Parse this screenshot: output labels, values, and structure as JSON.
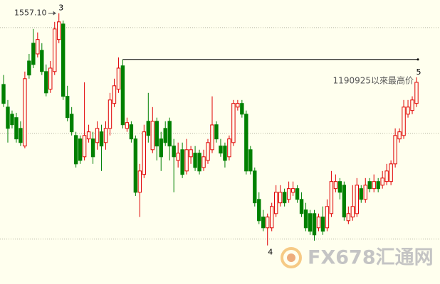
{
  "chart_data": {
    "type": "candlestick",
    "ylim": [
      1416,
      1564
    ],
    "grid_lines": [
      1549.6,
      1494.5,
      1439.4
    ],
    "up_color": "#e00000",
    "down_color": "#008000",
    "high_label": "1557.10",
    "wave_labels": [
      {
        "text": "3",
        "index": 13
      },
      {
        "text": "4",
        "index": 62
      },
      {
        "text": "5",
        "index": 97
      }
    ],
    "annotation": "1190925以來最高价",
    "reference_line_index": 28,
    "watermark": "FX678汇通网",
    "ohlc": [
      [
        1520.0,
        1524.9,
        1508.2,
        1510.1
      ],
      [
        1508.2,
        1511.9,
        1489.7,
        1497.1
      ],
      [
        1504.5,
        1506.4,
        1497.1,
        1499.0
      ],
      [
        1502.7,
        1505.2,
        1489.7,
        1491.6
      ],
      [
        1497.1,
        1500.8,
        1487.9,
        1489.7
      ],
      [
        1487.9,
        1526.7,
        1486.7,
        1523.0
      ],
      [
        1532.2,
        1535.9,
        1523.0,
        1524.9
      ],
      [
        1541.5,
        1548.9,
        1528.5,
        1530.4
      ],
      [
        1535.9,
        1547.1,
        1534.1,
        1543.4
      ],
      [
        1537.8,
        1541.5,
        1524.9,
        1526.7
      ],
      [
        1526.7,
        1530.4,
        1513.8,
        1515.6
      ],
      [
        1517.5,
        1532.2,
        1515.6,
        1528.5
      ],
      [
        1526.7,
        1552.6,
        1524.9,
        1548.9
      ],
      [
        1543.4,
        1557.1,
        1541.5,
        1552.6
      ],
      [
        1551.5,
        1553.3,
        1511.9,
        1513.8
      ],
      [
        1513.8,
        1519.3,
        1500.8,
        1502.7
      ],
      [
        1504.5,
        1508.2,
        1493.4,
        1495.3
      ],
      [
        1493.4,
        1495.3,
        1476.7,
        1478.6
      ],
      [
        1491.6,
        1493.4,
        1478.6,
        1480.4
      ],
      [
        1482.3,
        1521.1,
        1480.4,
        1493.4
      ],
      [
        1491.6,
        1499.0,
        1489.7,
        1495.3
      ],
      [
        1491.6,
        1495.3,
        1478.6,
        1482.3
      ],
      [
        1489.7,
        1500.8,
        1486.0,
        1497.1
      ],
      [
        1495.3,
        1499.0,
        1474.9,
        1487.9
      ],
      [
        1489.7,
        1500.8,
        1486.0,
        1497.1
      ],
      [
        1497.1,
        1515.6,
        1493.4,
        1511.9
      ],
      [
        1510.1,
        1523.0,
        1508.2,
        1519.3
      ],
      [
        1517.5,
        1534.1,
        1515.6,
        1528.5
      ],
      [
        1529.7,
        1533.0,
        1497.1,
        1499.0
      ],
      [
        1497.1,
        1502.7,
        1495.3,
        1500.1
      ],
      [
        1499.0,
        1500.8,
        1489.7,
        1491.6
      ],
      [
        1491.6,
        1493.4,
        1461.9,
        1463.8
      ],
      [
        1463.8,
        1478.6,
        1450.9,
        1474.9
      ],
      [
        1473.1,
        1499.0,
        1471.2,
        1495.3
      ],
      [
        1500.8,
        1515.6,
        1489.7,
        1493.4
      ],
      [
        1486.0,
        1508.2,
        1484.2,
        1500.8
      ],
      [
        1500.8,
        1502.7,
        1480.4,
        1487.9
      ],
      [
        1491.6,
        1495.3,
        1474.9,
        1482.3
      ],
      [
        1497.1,
        1500.8,
        1487.9,
        1489.7
      ],
      [
        1500.8,
        1502.7,
        1480.4,
        1487.9
      ],
      [
        1487.9,
        1491.6,
        1463.8,
        1482.3
      ],
      [
        1480.4,
        1489.7,
        1476.7,
        1484.2
      ],
      [
        1486.0,
        1489.7,
        1471.2,
        1473.1
      ],
      [
        1474.9,
        1491.6,
        1473.1,
        1486.0
      ],
      [
        1482.3,
        1487.9,
        1478.6,
        1486.0
      ],
      [
        1484.2,
        1487.9,
        1474.9,
        1476.7
      ],
      [
        1484.2,
        1486.0,
        1473.1,
        1474.9
      ],
      [
        1476.7,
        1486.0,
        1474.9,
        1482.3
      ],
      [
        1480.4,
        1491.6,
        1478.6,
        1489.7
      ],
      [
        1486.0,
        1513.8,
        1484.2,
        1498.9
      ],
      [
        1499.0,
        1500.8,
        1489.7,
        1491.6
      ],
      [
        1487.9,
        1491.6,
        1482.3,
        1484.2
      ],
      [
        1487.9,
        1489.7,
        1476.7,
        1480.4
      ],
      [
        1482.3,
        1493.4,
        1480.4,
        1491.6
      ],
      [
        1489.7,
        1511.9,
        1487.9,
        1510.1
      ],
      [
        1508.2,
        1511.9,
        1506.4,
        1510.1
      ],
      [
        1510.1,
        1511.9,
        1502.7,
        1504.5
      ],
      [
        1504.5,
        1506.4,
        1473.1,
        1474.9
      ],
      [
        1486.0,
        1487.9,
        1473.1,
        1474.9
      ],
      [
        1474.9,
        1476.7,
        1456.4,
        1458.3
      ],
      [
        1460.1,
        1463.8,
        1447.2,
        1449.0
      ],
      [
        1450.9,
        1454.6,
        1443.5,
        1445.3
      ],
      [
        1445.3,
        1452.7,
        1436.1,
        1450.9
      ],
      [
        1445.3,
        1458.3,
        1443.5,
        1456.4
      ],
      [
        1452.7,
        1467.5,
        1450.9,
        1463.8
      ],
      [
        1458.3,
        1467.5,
        1456.4,
        1463.8
      ],
      [
        1463.8,
        1465.7,
        1456.4,
        1458.3
      ],
      [
        1460.1,
        1469.4,
        1458.3,
        1465.7
      ],
      [
        1463.8,
        1469.4,
        1461.9,
        1465.7
      ],
      [
        1465.7,
        1467.5,
        1458.3,
        1460.1
      ],
      [
        1460.1,
        1463.8,
        1450.9,
        1452.7
      ],
      [
        1454.6,
        1458.3,
        1443.5,
        1445.3
      ],
      [
        1452.7,
        1454.6,
        1441.6,
        1443.5
      ],
      [
        1452.7,
        1454.6,
        1438.6,
        1441.6
      ],
      [
        1445.3,
        1452.7,
        1443.5,
        1450.9
      ],
      [
        1450.9,
        1456.4,
        1441.6,
        1443.5
      ],
      [
        1445.3,
        1460.1,
        1443.5,
        1456.4
      ],
      [
        1452.7,
        1474.9,
        1450.9,
        1469.4
      ],
      [
        1465.7,
        1473.1,
        1463.8,
        1469.4
      ],
      [
        1469.4,
        1471.2,
        1460.1,
        1463.8
      ],
      [
        1467.5,
        1469.4,
        1449.0,
        1450.9
      ],
      [
        1449.0,
        1456.4,
        1447.2,
        1452.7
      ],
      [
        1450.9,
        1467.5,
        1449.0,
        1456.4
      ],
      [
        1452.7,
        1471.2,
        1450.9,
        1467.5
      ],
      [
        1465.7,
        1467.5,
        1458.3,
        1460.1
      ],
      [
        1460.1,
        1471.2,
        1458.3,
        1467.5
      ],
      [
        1469.4,
        1471.2,
        1463.8,
        1465.7
      ],
      [
        1465.7,
        1473.1,
        1463.8,
        1469.4
      ],
      [
        1469.4,
        1471.2,
        1463.8,
        1465.7
      ],
      [
        1467.5,
        1474.9,
        1465.7,
        1471.2
      ],
      [
        1469.4,
        1478.6,
        1467.5,
        1474.9
      ],
      [
        1469.4,
        1480.4,
        1467.5,
        1478.6
      ],
      [
        1478.6,
        1497.1,
        1476.7,
        1493.4
      ],
      [
        1491.6,
        1497.1,
        1489.7,
        1495.3
      ],
      [
        1493.4,
        1511.9,
        1491.6,
        1508.2
      ],
      [
        1504.5,
        1511.9,
        1502.7,
        1508.2
      ],
      [
        1506.4,
        1513.8,
        1504.5,
        1511.9
      ],
      [
        1510.1,
        1523.7,
        1508.2,
        1521.1
      ]
    ]
  }
}
